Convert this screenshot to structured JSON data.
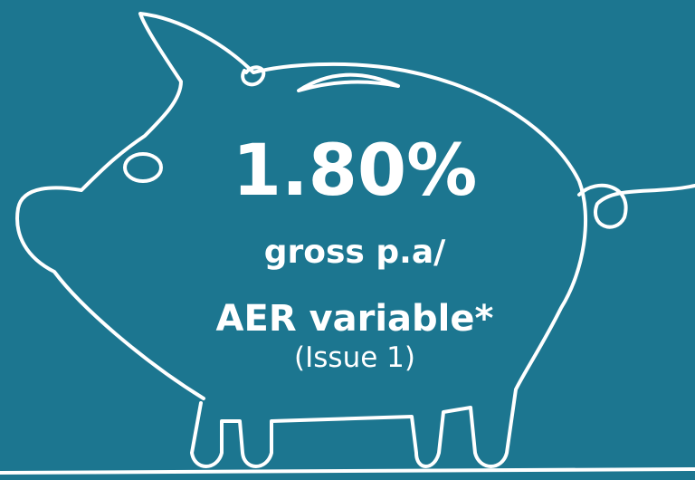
{
  "rate": "1.80%",
  "line1": "gross p.a/",
  "line2": "AER variable*",
  "note": "(Issue 1)"
}
